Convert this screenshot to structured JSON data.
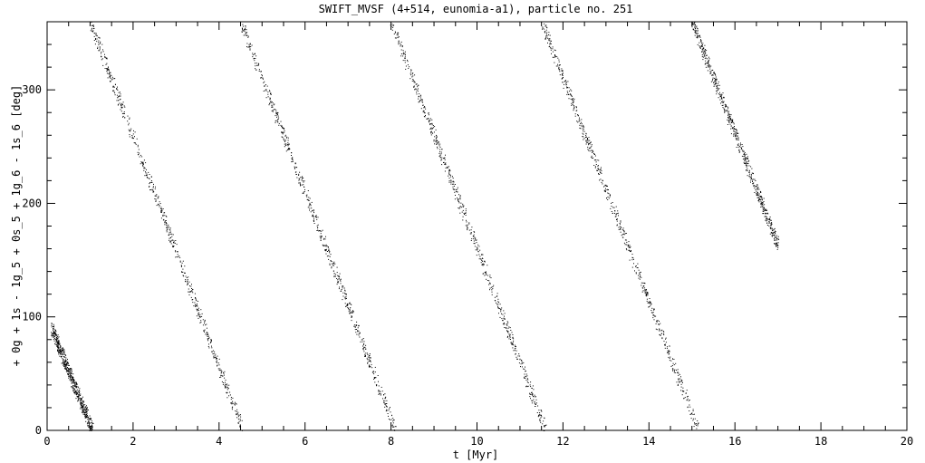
{
  "chart_data": {
    "type": "scatter",
    "title": "SWIFT_MVSF (4+514, eunomia-a1), particle no. 251",
    "xlabel": "t [Myr]",
    "ylabel": "+ 0g + 1s - 1g_5 + 0s_5 + 1g_6 - 1s_6 [deg]",
    "xlim": [
      0,
      20
    ],
    "ylim": [
      0,
      360
    ],
    "x_ticks": [
      "0",
      "2",
      "4",
      "6",
      "8",
      "10",
      "12",
      "14",
      "16",
      "18",
      "20"
    ],
    "y_ticks": [
      "0",
      "100",
      "200",
      "300"
    ],
    "grid": false,
    "marker_color": "#000000",
    "series": [
      {
        "segments": [
          {
            "x": [
              0.1,
              1.05
            ],
            "y": [
              90,
              0
            ]
          },
          {
            "x": [
              1.0,
              4.55
            ],
            "y": [
              360,
              0
            ]
          },
          {
            "x": [
              4.5,
              8.1
            ],
            "y": [
              360,
              0
            ]
          },
          {
            "x": [
              8.0,
              11.6
            ],
            "y": [
              360,
              0
            ]
          },
          {
            "x": [
              11.5,
              15.15
            ],
            "y": [
              360,
              0
            ]
          },
          {
            "x": [
              15.0,
              17.0
            ],
            "y": [
              360,
              163
            ]
          }
        ],
        "spread_deg": 6,
        "points_per_segment": 600
      }
    ]
  }
}
